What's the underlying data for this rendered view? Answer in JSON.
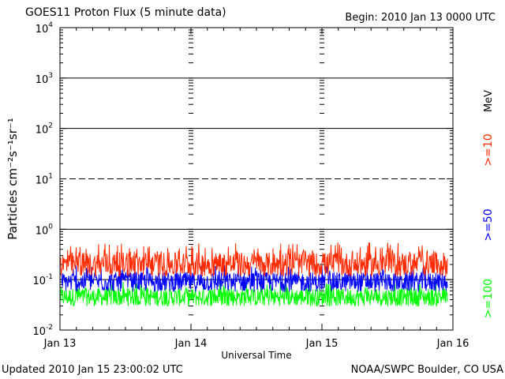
{
  "title": "GOES11 Proton Flux (5 minute data)",
  "begin": "Begin: 2010 Jan 13 0000 UTC",
  "updated": "Updated 2010 Jan 15 23:00:02 UTC",
  "credit": "NOAA/SWPC Boulder, CO USA",
  "chart_data": {
    "type": "line",
    "xlabel": "Universal Time",
    "ylabel": "Particles cm⁻²s⁻¹sr⁻¹",
    "yscale": "log",
    "ylim": [
      0.01,
      10000
    ],
    "xlim": [
      "2010-01-13 00:00",
      "2010-01-16 00:00"
    ],
    "x_ticks": [
      "Jan 13",
      "Jan 14",
      "Jan 15",
      "Jan 16"
    ],
    "y_ticks": [
      {
        "value": 0.01,
        "base": "10",
        "exp": "-2"
      },
      {
        "value": 0.1,
        "base": "10",
        "exp": "-1"
      },
      {
        "value": 1,
        "base": "10",
        "exp": "0"
      },
      {
        "value": 10,
        "base": "10",
        "exp": "1"
      },
      {
        "value": 100,
        "base": "10",
        "exp": "2"
      },
      {
        "value": 1000,
        "base": "10",
        "exp": "3"
      },
      {
        "value": 10000,
        "base": "10",
        "exp": "4"
      }
    ],
    "threshold_lines": [
      {
        "value": 10,
        "style": "dashed"
      },
      {
        "value": 100,
        "style": "solid"
      },
      {
        "value": 1000,
        "style": "solid"
      }
    ],
    "energy_unit": "MeV",
    "series": [
      {
        "name": ">=10",
        "color": "#ff2a00",
        "typical": 0.2,
        "range": [
          0.1,
          0.55
        ]
      },
      {
        "name": ">=50",
        "color": "#0000ff",
        "typical": 0.09,
        "range": [
          0.05,
          0.2
        ]
      },
      {
        "name": ">=100",
        "color": "#00ff00",
        "typical": 0.045,
        "range": [
          0.025,
          0.09
        ]
      }
    ],
    "interval_minutes": 5
  }
}
